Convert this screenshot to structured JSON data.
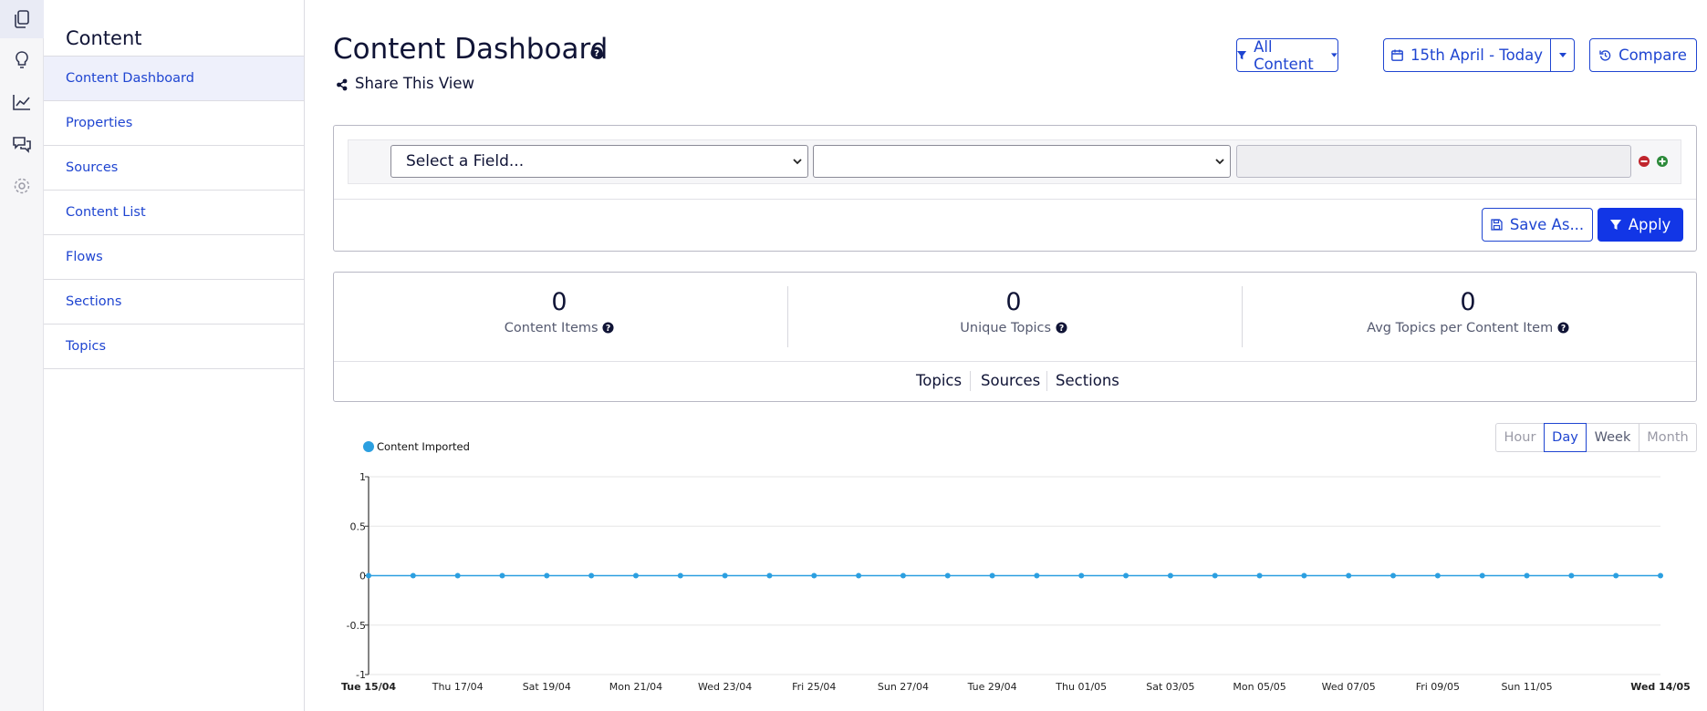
{
  "sidebar": {
    "title": "Content",
    "items": [
      "Content Dashboard",
      "Properties",
      "Sources",
      "Content List",
      "Flows",
      "Sections",
      "Topics"
    ]
  },
  "header": {
    "title": "Content Dashboard",
    "share": "Share This View",
    "filter_button": "All Content",
    "date_range": "15th April - Today",
    "compare": "Compare"
  },
  "filter": {
    "field_placeholder": "Select a Field...",
    "save_as": "Save As...",
    "apply": "Apply"
  },
  "stats": [
    {
      "value": 0,
      "label": "Content Items"
    },
    {
      "value": 0,
      "label": "Unique Topics"
    },
    {
      "value": 0,
      "label": "Avg Topics per Content Item"
    }
  ],
  "tabs": [
    "Topics",
    "Sources",
    "Sections"
  ],
  "periods": [
    "Hour",
    "Day",
    "Week",
    "Month"
  ],
  "chart_data": {
    "type": "line",
    "categories": [
      "Tue 15/04",
      null,
      "Thu 17/04",
      null,
      "Sat 19/04",
      null,
      "Mon 21/04",
      null,
      "Wed 23/04",
      null,
      "Fri 25/04",
      null,
      "Sun 27/04",
      null,
      "Tue 29/04",
      null,
      "Thu 01/05",
      null,
      "Sat 03/05",
      null,
      "Mon 05/05",
      null,
      "Wed 07/05",
      null,
      "Fri 09/05",
      null,
      "Sun 11/05",
      null,
      null,
      "Wed 14/05"
    ],
    "series": [
      {
        "name": "Content Imported",
        "color": "#2b9fe0",
        "values": [
          0,
          0,
          0,
          0,
          0,
          0,
          0,
          0,
          0,
          0,
          0,
          0,
          0,
          0,
          0,
          0,
          0,
          0,
          0,
          0,
          0,
          0,
          0,
          0,
          0,
          0,
          0,
          0,
          0,
          0
        ]
      }
    ],
    "ylim": [
      -1,
      1
    ],
    "yticks": [
      -1,
      -0.5,
      0,
      0.5,
      1
    ],
    "grid": true
  }
}
